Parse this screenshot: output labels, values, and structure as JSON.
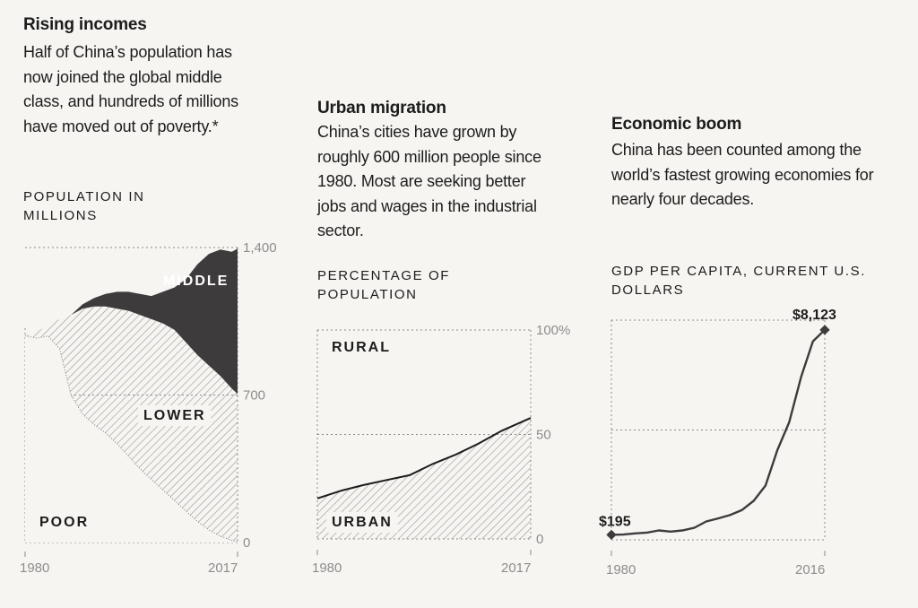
{
  "panels": [
    {
      "title": "Rising incomes",
      "description": "Half of China’s population has now joined the global middle class, and hundreds of millions have moved out of poverty.*",
      "axis_title": "POPULATION IN MILLIONS"
    },
    {
      "title": "Urban migration",
      "description": "China’s cities have grown by roughly 600 million people since 1980. Most are seeking better jobs and wages in the industrial sector.",
      "axis_title": "PERCENTAGE OF POPULATION"
    },
    {
      "title": "Economic boom",
      "description": "China has been counted among the world’s fastest growing economies for nearly four decades.",
      "axis_title": "GDP PER CAPITA, CURRENT U.S. DOLLARS"
    }
  ],
  "chart_data": [
    {
      "type": "area",
      "stacked": true,
      "x_ticks": [
        "1980",
        "2017"
      ],
      "y_ticks": [
        "1,400",
        "700",
        "0"
      ],
      "x": [
        1980,
        1982,
        1984,
        1986,
        1988,
        1990,
        1992,
        1994,
        1996,
        1998,
        2000,
        2002,
        2004,
        2006,
        2008,
        2010,
        2012,
        2014,
        2016,
        2017
      ],
      "ylim": [
        0,
        1400
      ],
      "series": [
        {
          "name": "POOR",
          "values": [
            981,
            970,
            980,
            920,
            700,
            610,
            560,
            520,
            470,
            410,
            350,
            300,
            250,
            200,
            150,
            100,
            60,
            30,
            10,
            5
          ]
        },
        {
          "name": "LOWER",
          "values": [
            0,
            30,
            50,
            140,
            380,
            500,
            560,
            600,
            640,
            690,
            730,
            760,
            790,
            810,
            800,
            790,
            780,
            760,
            720,
            700
          ]
        },
        {
          "name": "MIDDLE",
          "values": [
            0,
            0,
            0,
            0,
            0,
            20,
            40,
            60,
            80,
            90,
            100,
            110,
            150,
            200,
            300,
            430,
            530,
            600,
            650,
            690
          ]
        }
      ],
      "grid": "dotted",
      "legend": "inline labels"
    },
    {
      "type": "area",
      "stacked": true,
      "x_ticks": [
        "1980",
        "2017"
      ],
      "y_ticks": [
        "100%",
        "50",
        "0"
      ],
      "x": [
        1980,
        1984,
        1988,
        1992,
        1996,
        2000,
        2004,
        2008,
        2012,
        2017
      ],
      "ylim": [
        0,
        100
      ],
      "series": [
        {
          "name": "URBAN",
          "values": [
            19.4,
            23,
            25.8,
            28.2,
            30.5,
            35.9,
            40.4,
            45.7,
            51.8,
            57.9
          ]
        },
        {
          "name": "RURAL",
          "values": [
            80.6,
            77,
            74.2,
            71.8,
            69.5,
            64.1,
            59.6,
            54.3,
            48.2,
            42.1
          ]
        }
      ],
      "grid": "dotted",
      "legend": "inline labels"
    },
    {
      "type": "line",
      "x_ticks": [
        "1980",
        "2016"
      ],
      "x": [
        1980,
        1982,
        1984,
        1986,
        1988,
        1990,
        1992,
        1994,
        1996,
        1998,
        2000,
        2002,
        2004,
        2006,
        2008,
        2010,
        2012,
        2014,
        2016
      ],
      "ylim": [
        0,
        8500
      ],
      "series": [
        {
          "values": [
            195,
            203,
            251,
            282,
            366,
            318,
            366,
            470,
            710,
            829,
            959,
            1149,
            1509,
            2099,
            3471,
            4550,
            6300,
            7680,
            8123
          ]
        }
      ],
      "annotations": [
        {
          "label": "$195",
          "year": 1980,
          "value": 195
        },
        {
          "label": "$8,123",
          "year": 2016,
          "value": 8123
        }
      ],
      "grid": "dotted",
      "legend": "none"
    }
  ],
  "colors": {
    "background": "#f6f5f2",
    "dark_area": "#3d3b3c",
    "hatch": "#9c9c9c",
    "ink": "#1c1c1c",
    "tick": "#8d8d8d",
    "grid": "#8a8a8a"
  }
}
